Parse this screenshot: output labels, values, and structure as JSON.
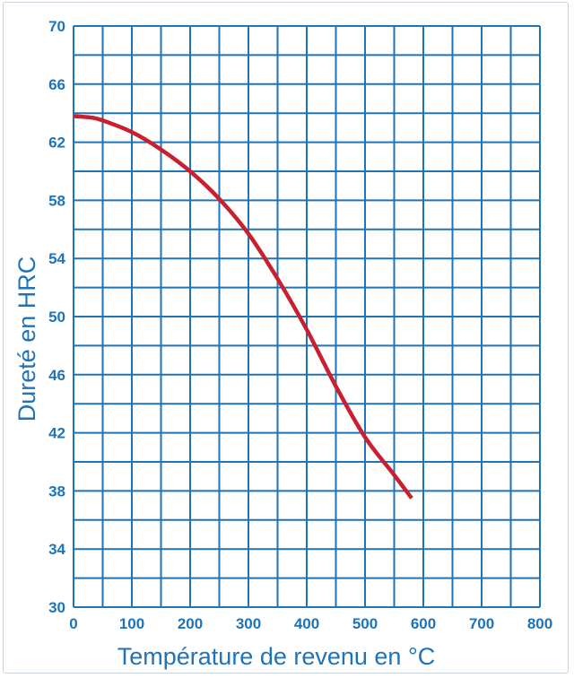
{
  "chart_data": {
    "type": "line",
    "title": "",
    "xlabel": "Température de revenu en °C",
    "ylabel": "Dureté en HRC",
    "xlim": [
      0,
      800
    ],
    "ylim": [
      30,
      70
    ],
    "x_ticks": [
      0,
      100,
      200,
      300,
      400,
      500,
      600,
      700,
      800
    ],
    "y_ticks": [
      30,
      34,
      38,
      42,
      46,
      50,
      54,
      58,
      62,
      66,
      70
    ],
    "grid": true,
    "grid_x_step": 50,
    "grid_y_step": 2,
    "legend": "none",
    "series": [
      {
        "color": "#c8202f",
        "x": [
          0,
          30,
          50,
          100,
          150,
          200,
          250,
          300,
          350,
          400,
          450,
          500,
          550,
          580
        ],
        "y": [
          63.8,
          63.7,
          63.5,
          62.7,
          61.5,
          60.0,
          58.1,
          55.7,
          52.6,
          49.1,
          45.2,
          41.7,
          39.1,
          37.5
        ]
      }
    ]
  },
  "colors": {
    "axis_text": "#1f73b7",
    "grid": "#1f73b7"
  }
}
